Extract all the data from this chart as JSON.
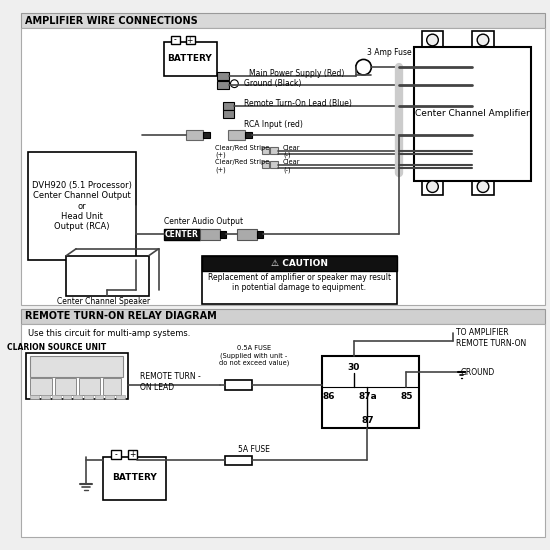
{
  "bg_color": "#efefef",
  "section1_title": "AMPLIFIER WIRE CONNECTIONS",
  "section2_title": "REMOTE TURN-ON RELAY DIAGRAM",
  "section2_sub": "Use this circuit for multi-amp systems.",
  "caution_title": "⚠ CAUTION",
  "caution_text": "Replacement of amplifier or speaker may result\nin potential damage to equipment.",
  "dvh_label": "DVH920 (5.1 Processor)\nCenter Channel Output\nor\nHead Unit\nOutput (RCA)",
  "battery_label": "BATTERY",
  "battery2_label": "BATTERY",
  "amp_label": "Center Channel Amplifier",
  "speaker_label": "Center Channel Speaker",
  "center_label": "CENTER",
  "fuse3amp_label": "3 Amp Fuse",
  "main_power_label": "Main Power Supply (Red)",
  "ground_label": "Ground (Black)",
  "remote_blue_label": "Remote Turn-On Lead (Blue)",
  "rca_label": "RCA Input (red)",
  "clear_red1": "Clear/Red Stripe\n(+)",
  "clear1": "Clear\n(-)",
  "clear_red2": "Clear/Red Stripe\n(+)",
  "clear2": "Clear\n(-)",
  "center_audio_label": "Center Audio Output",
  "clarion_label": "CLARION SOURCE UNIT",
  "remote_turn_label": "REMOTE TURN -\nON LEAD",
  "fuse05_label": "0.5A FUSE\n(Supplied with unit -\ndo not exceed value)",
  "fuse5a_label": "5A FUSE",
  "to_amp_label": "TO AMPLIFIER\nREMOTE TURN-ON",
  "ground2_label": "GROUND",
  "relay_30": "30",
  "relay_86": "86",
  "relay_87a": "87a",
  "relay_85": "85",
  "relay_87": "87"
}
